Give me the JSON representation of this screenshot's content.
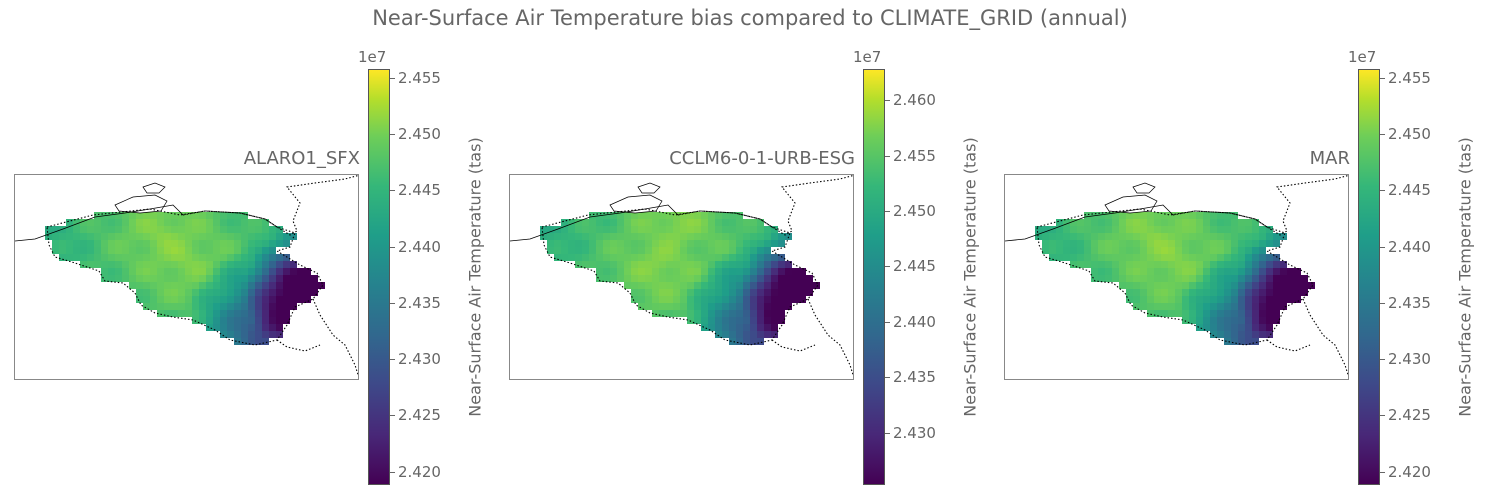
{
  "title": "Near-Surface Air Temperature bias compared to CLIMATE_GRID (annual)",
  "colormap": [
    "#440154",
    "#482878",
    "#3e4989",
    "#31688e",
    "#26828e",
    "#1f9e89",
    "#35b779",
    "#6ece58",
    "#b5de2b",
    "#fde725"
  ],
  "chart_data": [
    {
      "type": "heatmap",
      "title": "ALARO1_SFX",
      "colorbar_label": "Near-Surface Air Temperature (tas)",
      "colorbar_exponent": "1e7",
      "vmin": 2.4188,
      "vmax": 2.4558,
      "ticks": [
        "2.420",
        "2.425",
        "2.430",
        "2.435",
        "2.440",
        "2.445",
        "2.450",
        "2.455"
      ]
    },
    {
      "type": "heatmap",
      "title": "CCLM6-0-1-URB-ESG",
      "colorbar_label": "Near-Surface Air Temperature (tas)",
      "colorbar_exponent": "1e7",
      "vmin": 2.4253,
      "vmax": 2.4628,
      "ticks": [
        "2.430",
        "2.435",
        "2.440",
        "2.445",
        "2.450",
        "2.455",
        "2.460"
      ]
    },
    {
      "type": "heatmap",
      "title": "MAR",
      "colorbar_label": "Near-Surface Air Temperature (tas)",
      "colorbar_exponent": "1e7",
      "vmin": 2.4188,
      "vmax": 2.4558,
      "ticks": [
        "2.420",
        "2.425",
        "2.430",
        "2.435",
        "2.440",
        "2.445",
        "2.450",
        "2.455"
      ]
    }
  ]
}
